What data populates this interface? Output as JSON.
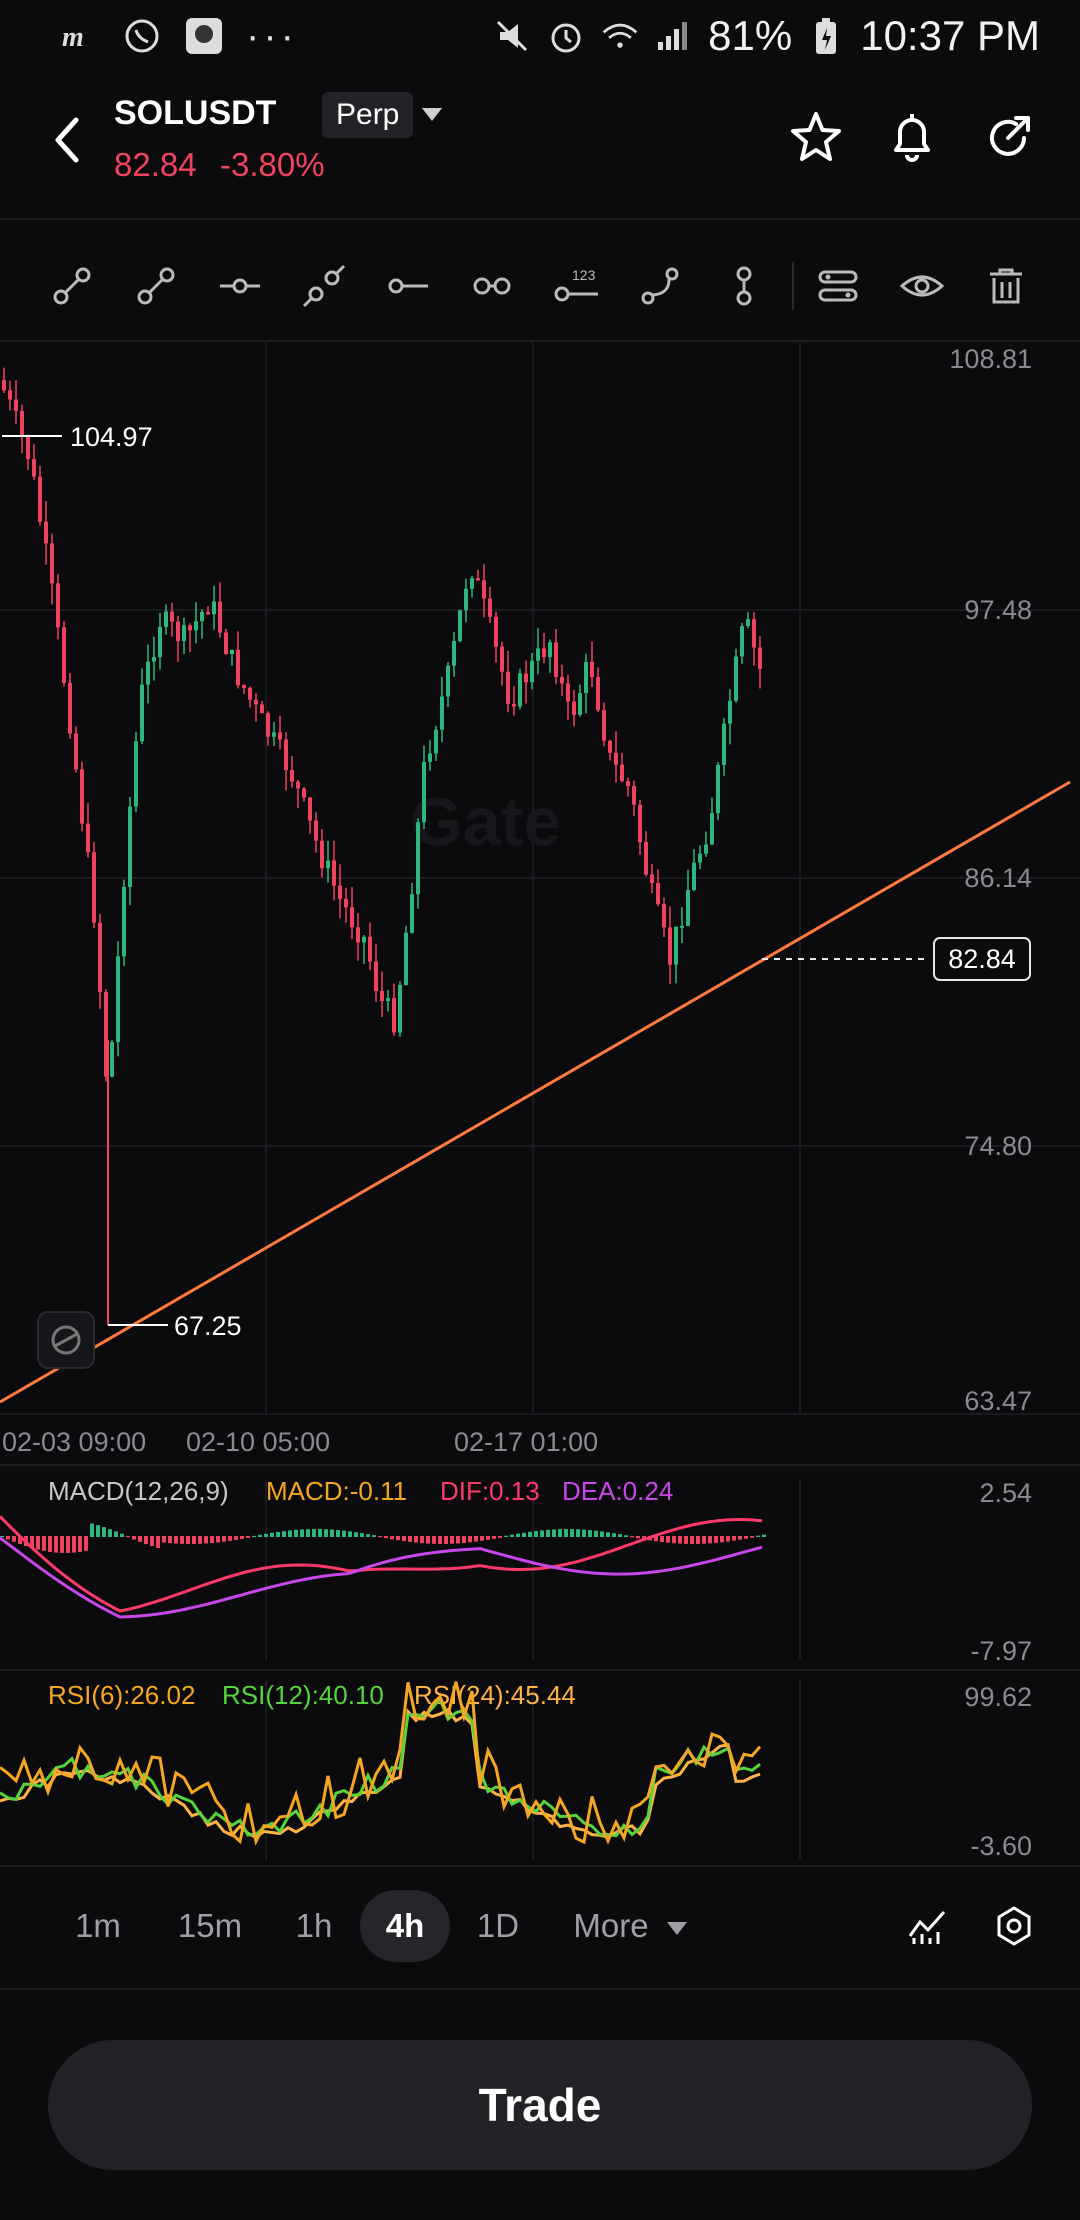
{
  "status_bar": {
    "battery": "81%",
    "time": "10:37 PM"
  },
  "header": {
    "symbol": "SOLUSDT",
    "contract_type": "Perp",
    "last_price": "82.84",
    "change_pct": "-3.80%",
    "price_color": "#f0435e"
  },
  "toolbar": {
    "tools": [
      "trend-line-icon",
      "ray-icon",
      "horizontal-line-icon",
      "extended-line-icon",
      "horizontal-ray-icon",
      "parallel-line-icon",
      "price-label-icon",
      "arc-line-icon",
      "vertical-line-icon",
      "layers-icon",
      "visibility-icon",
      "delete-icon"
    ],
    "tool_label_123": "123"
  },
  "chart": {
    "watermark": "Gate",
    "price_axis": [
      "108.81",
      "97.48",
      "86.14",
      "74.80",
      "63.47"
    ],
    "time_axis": [
      "02-03 09:00",
      "02-10 05:00",
      "02-17 01:00"
    ],
    "high_marker": "104.97",
    "low_marker": "67.25",
    "current_price_tag": "82.84",
    "macd_legend": {
      "name": "MACD(12,26,9)",
      "macd": "MACD:-0.11",
      "dif": "DIF:0.13",
      "dea": "DEA:0.24"
    },
    "macd_axis": [
      "2.54",
      "-7.97"
    ],
    "rsi_legend": {
      "rsi6": "RSI(6):26.02",
      "rsi12": "RSI(12):40.10",
      "rsi24": "RSI(24):45.44"
    },
    "rsi_axis": [
      "99.62",
      "-3.60"
    ],
    "colors": {
      "up": "#2eb67d",
      "down": "#f0435e",
      "trendline": "#ff7a3d",
      "macd": "#f5a623",
      "dif": "#ff3a6a",
      "dea": "#c847e8",
      "rsi6": "#f5a623",
      "rsi12": "#56d33e",
      "rsi24": "#ffb347"
    }
  },
  "intervals": {
    "items": [
      "1m",
      "15m",
      "1h",
      "4h",
      "1D",
      "More"
    ],
    "active": "4h"
  },
  "trade_button": "Trade"
}
